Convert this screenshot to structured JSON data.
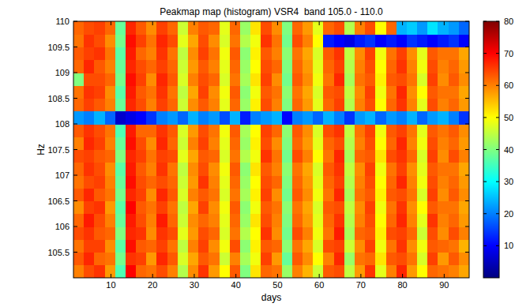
{
  "chart_data": {
    "type": "heatmap",
    "title": "Peakmap map (histogram) VSR4  band 105.0 - 110.0",
    "x_label": "days",
    "y_label": "Hz",
    "color": "jet",
    "grid": false,
    "xlim": [
      1,
      96
    ],
    "ylim": [
      105,
      110
    ],
    "xticks": [
      10,
      20,
      30,
      40,
      50,
      60,
      70,
      80,
      90
    ],
    "yticks": [
      105.5,
      106,
      106.5,
      107,
      107.5,
      108,
      108.5,
      109,
      109.5,
      110
    ],
    "x": [
      1,
      3.5,
      6,
      8.5,
      11,
      13.5,
      16,
      18.5,
      21,
      23.5,
      26,
      28.5,
      31,
      33.5,
      36,
      38.5,
      41,
      43.5,
      46,
      48.5,
      51,
      53.5,
      56,
      58.5,
      61,
      63.5,
      66,
      68.5,
      71,
      73.5,
      76,
      78.5,
      81,
      83.5,
      86,
      88.5,
      91,
      93.5,
      96
    ],
    "y": [
      105,
      105.25,
      105.5,
      105.75,
      106,
      106.25,
      106.5,
      106.75,
      107,
      107.25,
      107.5,
      107.75,
      108,
      108.25,
      108.5,
      108.75,
      109,
      109.25,
      109.5,
      109.75,
      110
    ],
    "values": [
      [
        60,
        64,
        66,
        58,
        36,
        70,
        62,
        61,
        64,
        60,
        44,
        59,
        66,
        58,
        50,
        63,
        40,
        52,
        62,
        61,
        42,
        60,
        56,
        46,
        63,
        64,
        45,
        58,
        66,
        48,
        60,
        67,
        58,
        50,
        62,
        61,
        60,
        57
      ],
      [
        63,
        67,
        62,
        61,
        39,
        66,
        65,
        58,
        67,
        63,
        47,
        57,
        63,
        61,
        46,
        60,
        43,
        49,
        65,
        58,
        38,
        63,
        59,
        50,
        60,
        67,
        42,
        61,
        62,
        52,
        63,
        64,
        61,
        47,
        65,
        58,
        63,
        59
      ],
      [
        61,
        65,
        65,
        59,
        37,
        69,
        63,
        62,
        65,
        61,
        45,
        60,
        65,
        59,
        49,
        64,
        41,
        51,
        63,
        62,
        41,
        61,
        57,
        47,
        64,
        65,
        46,
        59,
        65,
        49,
        61,
        66,
        59,
        49,
        63,
        62,
        61,
        56
      ],
      [
        64,
        66,
        63,
        62,
        40,
        67,
        66,
        59,
        66,
        64,
        48,
        58,
        64,
        62,
        47,
        61,
        44,
        50,
        66,
        59,
        39,
        64,
        60,
        49,
        61,
        68,
        43,
        62,
        63,
        51,
        64,
        65,
        62,
        46,
        64,
        59,
        64,
        60
      ],
      [
        62,
        68,
        64,
        60,
        38,
        68,
        64,
        60,
        68,
        62,
        46,
        59,
        62,
        60,
        48,
        62,
        42,
        52,
        64,
        60,
        40,
        62,
        58,
        48,
        62,
        66,
        44,
        60,
        64,
        50,
        62,
        67,
        60,
        48,
        66,
        60,
        62,
        58
      ],
      [
        59,
        65,
        66,
        58,
        37,
        70,
        63,
        61,
        65,
        61,
        45,
        57,
        65,
        59,
        49,
        63,
        41,
        49,
        63,
        61,
        41,
        61,
        57,
        47,
        63,
        64,
        45,
        59,
        65,
        49,
        61,
        66,
        59,
        50,
        63,
        61,
        61,
        57
      ],
      [
        63,
        67,
        63,
        61,
        39,
        67,
        65,
        59,
        67,
        63,
        47,
        60,
        63,
        61,
        47,
        61,
        43,
        51,
        65,
        59,
        39,
        63,
        59,
        49,
        61,
        67,
        43,
        61,
        63,
        51,
        63,
        64,
        61,
        47,
        65,
        59,
        63,
        59
      ],
      [
        61,
        64,
        65,
        60,
        38,
        69,
        64,
        62,
        64,
        62,
        46,
        58,
        66,
        60,
        48,
        62,
        42,
        50,
        64,
        62,
        40,
        62,
        58,
        48,
        62,
        65,
        44,
        60,
        64,
        50,
        62,
        67,
        60,
        49,
        64,
        60,
        62,
        58
      ],
      [
        62,
        66,
        64,
        59,
        37,
        68,
        63,
        60,
        66,
        61,
        45,
        59,
        64,
        59,
        49,
        63,
        41,
        52,
        63,
        60,
        41,
        61,
        57,
        47,
        63,
        66,
        45,
        59,
        65,
        49,
        61,
        65,
        59,
        48,
        63,
        61,
        61,
        57
      ],
      [
        64,
        65,
        63,
        62,
        40,
        67,
        65,
        61,
        65,
        64,
        48,
        57,
        63,
        62,
        47,
        61,
        44,
        49,
        66,
        61,
        39,
        64,
        60,
        50,
        61,
        67,
        43,
        62,
        63,
        52,
        64,
        66,
        62,
        47,
        65,
        59,
        64,
        60
      ],
      [
        60,
        67,
        65,
        60,
        38,
        69,
        64,
        59,
        67,
        62,
        46,
        60,
        65,
        60,
        48,
        62,
        42,
        51,
        64,
        59,
        40,
        62,
        58,
        48,
        62,
        64,
        44,
        60,
        64,
        50,
        62,
        67,
        60,
        49,
        64,
        60,
        62,
        58
      ],
      [
        63,
        66,
        64,
        61,
        36,
        68,
        62,
        62,
        66,
        63,
        47,
        58,
        64,
        61,
        49,
        63,
        43,
        50,
        65,
        62,
        41,
        63,
        59,
        47,
        64,
        66,
        45,
        61,
        65,
        49,
        63,
        65,
        61,
        48,
        63,
        61,
        63,
        59
      ],
      [
        22,
        20,
        24,
        18,
        6,
        8,
        10,
        14,
        20,
        22,
        18,
        24,
        20,
        22,
        16,
        24,
        12,
        20,
        22,
        24,
        10,
        20,
        22,
        18,
        24,
        20,
        14,
        22,
        24,
        18,
        22,
        20,
        24,
        18,
        22,
        24,
        20,
        14
      ],
      [
        62,
        65,
        63,
        60,
        38,
        67,
        64,
        60,
        65,
        62,
        46,
        59,
        63,
        60,
        48,
        62,
        42,
        51,
        64,
        60,
        40,
        62,
        58,
        48,
        62,
        65,
        44,
        60,
        64,
        50,
        62,
        66,
        60,
        48,
        64,
        60,
        62,
        58
      ],
      [
        61,
        66,
        65,
        59,
        37,
        68,
        63,
        61,
        66,
        61,
        45,
        57,
        65,
        59,
        49,
        63,
        41,
        49,
        63,
        61,
        41,
        61,
        57,
        47,
        63,
        64,
        45,
        59,
        65,
        49,
        61,
        67,
        59,
        50,
        63,
        61,
        61,
        57
      ],
      [
        40,
        64,
        64,
        62,
        39,
        69,
        65,
        59,
        67,
        63,
        47,
        60,
        64,
        62,
        47,
        61,
        43,
        52,
        65,
        59,
        39,
        63,
        59,
        49,
        61,
        67,
        43,
        61,
        63,
        51,
        63,
        64,
        61,
        47,
        65,
        59,
        63,
        59
      ],
      [
        62,
        67,
        63,
        60,
        38,
        67,
        64,
        62,
        65,
        62,
        46,
        58,
        63,
        60,
        48,
        62,
        42,
        50,
        64,
        62,
        40,
        62,
        58,
        48,
        62,
        65,
        44,
        60,
        64,
        50,
        62,
        66,
        60,
        49,
        64,
        60,
        62,
        58
      ],
      [
        63,
        65,
        66,
        61,
        37,
        68,
        62,
        60,
        66,
        61,
        45,
        59,
        65,
        61,
        49,
        63,
        41,
        51,
        63,
        60,
        41,
        61,
        57,
        47,
        63,
        66,
        45,
        59,
        65,
        49,
        61,
        65,
        59,
        48,
        63,
        61,
        61,
        57
      ],
      [
        61,
        66,
        64,
        59,
        39,
        69,
        65,
        61,
        67,
        64,
        48,
        57,
        64,
        59,
        47,
        61,
        44,
        49,
        66,
        61,
        39,
        64,
        60,
        50,
        12,
        10,
        8,
        12,
        14,
        10,
        12,
        10,
        14,
        12,
        10,
        12,
        14,
        10
      ],
      [
        62,
        64,
        65,
        62,
        38,
        67,
        63,
        59,
        65,
        62,
        46,
        60,
        63,
        62,
        48,
        62,
        42,
        52,
        64,
        59,
        40,
        62,
        58,
        48,
        62,
        64,
        44,
        60,
        64,
        50,
        62,
        24,
        26,
        22,
        28,
        24,
        22,
        18
      ]
    ],
    "colorbar_range": [
      0,
      80
    ],
    "colorbar_ticks": [
      10,
      20,
      30,
      40,
      50,
      60,
      70,
      80
    ]
  }
}
